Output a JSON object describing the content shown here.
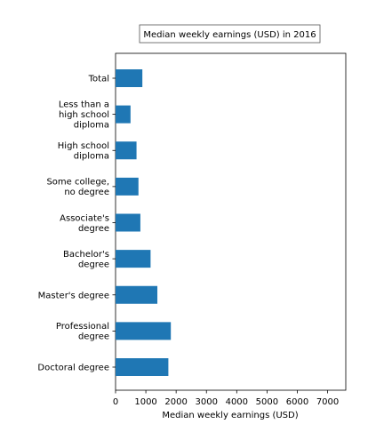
{
  "chart_data": {
    "type": "bar",
    "orientation": "horizontal",
    "title": "Median weekly earnings (USD) in 2016",
    "xlabel": "Median weekly earnings (USD)",
    "ylabel": "",
    "xlim": [
      0,
      7600
    ],
    "xticks": [
      0,
      1000,
      2000,
      3000,
      4000,
      5000,
      6000,
      7000
    ],
    "categories": [
      [
        "Total"
      ],
      [
        "Less than a",
        "high school",
        "diploma"
      ],
      [
        "High school",
        "diploma"
      ],
      [
        "Some college,",
        "no degree"
      ],
      [
        "Associate's",
        "degree"
      ],
      [
        "Bachelor's",
        "degree"
      ],
      [
        "Master's degree"
      ],
      [
        "Professional",
        "degree"
      ],
      [
        "Doctoral degree"
      ]
    ],
    "values": [
      885,
      494,
      692,
      756,
      819,
      1156,
      1380,
      1825,
      1743
    ],
    "grid": false,
    "bar_color": "#1f77b4",
    "title_box": true
  }
}
